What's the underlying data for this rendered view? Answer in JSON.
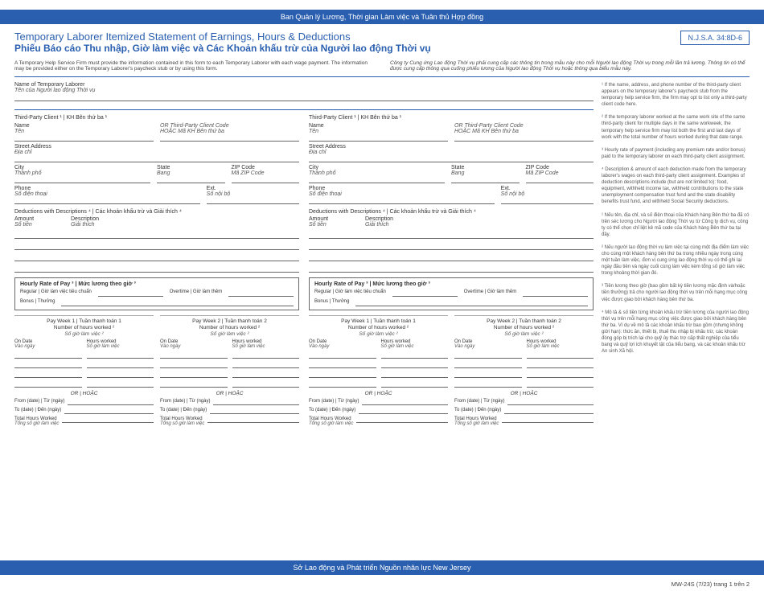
{
  "colors": {
    "brand": "#2a5fb0",
    "text": "#333333",
    "muted": "#555555",
    "line": "#666666"
  },
  "topbar": "Ban Quản lý Lương, Thời gian Làm việc và Tuân thủ Hợp đồng",
  "title_en": "Temporary Laborer Itemized Statement of Earnings, Hours & Deductions",
  "title_vi": "Phiếu Báo cáo Thu nhập, Giờ làm việc và Các Khoản khấu trừ của Người lao động Thời vụ",
  "statute": "N.J.S.A. 34:8D-6",
  "intro_en": "A Temporary Help Service Firm must provide the information contained in this form to each Temporary Laborer with each wage payment. The information may be provided either on the Temporary Laborer's paycheck stub or by using this form.",
  "intro_vi": "Công ty Cung ứng Lao động Thời vụ phải cung cấp các thông tin trong mẫu này cho mỗi Người lao động Thời vụ trong mỗi lần trả lương. Thông tin có thể được cung cấp thông qua cuống phiếu lương của Người lao động Thời vụ hoặc thông qua biểu mẫu này.",
  "name_label_en": "Name of Temporary Laborer",
  "name_label_vi": "Tên của Người lao động Thời vụ",
  "client": {
    "header": "Third-Party Client ¹ | KH Bên thứ ba ¹",
    "name": "Name",
    "name_vi": "Tên",
    "or_code": "OR Third-Party Client Code",
    "or_code_vi": "HOẶC Mã KH Bên thứ ba",
    "street": "Street Address",
    "street_vi": "Địa chỉ",
    "city": "City",
    "city_vi": "Thành phố",
    "state": "State",
    "state_vi": "Bang",
    "zip": "ZIP Code",
    "zip_vi": "Mã ZIP Code",
    "phone": "Phone",
    "phone_vi": "Số điện thoại",
    "ext": "Ext.",
    "ext_vi": "Số nội bộ"
  },
  "deductions": {
    "header": "Deductions with Descriptions ⁴ | Các khoản khấu trừ và Giải thích ⁴",
    "amount": "Amount",
    "amount_vi": "Số tiền",
    "desc": "Description",
    "desc_vi": "Giải thích"
  },
  "rate": {
    "header": "Hourly Rate of Pay ³ | Mức lương theo giờ ³",
    "regular": "Regular | Giờ làm việc tiêu chuẩn",
    "overtime": "Overtime | Giờ làm thêm",
    "bonus": "Bonus | Thưởng"
  },
  "payweek": {
    "w1": "Pay Week 1 | Tuần thanh toán 1",
    "w2": "Pay Week 2 | Tuần thanh toán 2",
    "nhw": "Number of hours worked ²",
    "nhw_vi": "Số giờ làm việc ²",
    "ondate": "On Date",
    "ondate_vi": "Vào ngày",
    "hw": "Hours worked",
    "hw_vi": "Số giờ làm việc",
    "or": "OR | HOẶC",
    "from": "From (date) | Từ (ngày)",
    "to": "To (date) | Đến (ngày)",
    "total": "Total Hours Worked",
    "total_vi": "Tổng số giờ làm việc"
  },
  "notes": {
    "n1": "¹ If the name, address, and phone number of the third-party client appears on the temporary laborer's paycheck stub from the temporary help service firm, the firm may opt to list only a third-party client code here.",
    "n2": "² If the temporary laborer worked at the same work site of the same third-party client for multiple days in the same workweek, the temporary help service firm may list both the first and last days of work with the total number of hours worked during that date range.",
    "n3": "³ Hourly rate of payment (including any premium rate and/or bonus) paid to the temporary laborer on each third-party client assignment.",
    "n4": "⁴ Description & amount of each deduction made from the temporary laborer's wages on each third-party client assignment. Examples of deduction descriptions include (but are not limited to): food, equipment, withheld income tax, withheld contributions to the state unemployment compensation trust fund and the state disability benefits trust fund, and withheld Social Security deductions.",
    "v1": "¹ Nếu tên, địa chỉ, và số điện thoại của Khách hàng Bên thứ ba đã có trên séc lương cho Người lao động Thời vụ từ Công ty dịch vụ, công ty có thể chọn chỉ liệt kê mã code của Khách hàng Bên thứ ba tại đây.",
    "v2": "² Nếu người lao động thời vụ làm việc tại cùng một địa điểm làm việc cho cùng một khách hàng bên thứ ba trong nhiều ngày trong cùng một tuần làm việc, đơn vị cung ứng lao động thời vụ có thể ghi lại ngày đầu tiên và ngày cuối cùng làm việc kèm tổng số giờ làm việc trong khoảng thời gian đó.",
    "v3": "³ Tiền lương theo giờ (bao gồm bất kỳ tiền lương mặc định và/hoặc tiền thưởng) trả cho người lao động thời vụ trên mỗi hạng mục công việc được giao bởi khách hàng bên thứ ba.",
    "v4": "⁴ Mô tả & số tiền từng khoản khấu trừ tiền lương của người lao động thời vụ trên mỗi hạng mục công việc được giao bởi khách hàng bên thứ ba. Ví dụ về mô tả các khoản khấu trừ bao gồm (nhưng không giới hạn): thức ăn, thiết bị, thuế thu nhập bị khấu trừ, các khoản đóng góp bị trích lại cho quỹ ủy thác trợ cấp thất nghiệp của tiểu bang và quỹ lợi ích khuyết tật của tiểu bang, và các khoản khấu trừ An sinh Xã hội."
  },
  "bottombar": "Sở Lao động và Phát triển Nguồn nhân lực New Jersey",
  "footer": "MW-24S (7/23) trang 1 trên 2"
}
